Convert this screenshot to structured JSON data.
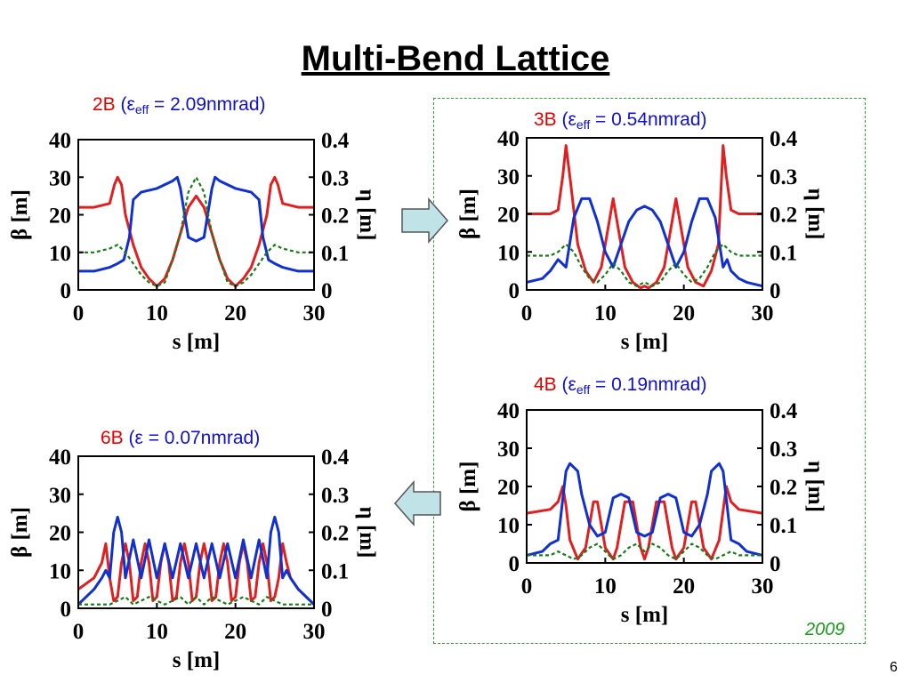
{
  "title": "Multi-Bend Lattice",
  "year": "2009",
  "page_number": "6",
  "colors": {
    "beta_x": "#e02020",
    "beta_y": "#1030d0",
    "eta": "#1a7a1a",
    "arrow_fill": "#bfe3e6",
    "box": "#3a9a3a"
  },
  "captions": {
    "c2b": {
      "label": "2B",
      "paren_open": " (",
      "eps": "ε",
      "sub": "eff",
      "rest": " = 2.09nmrad)"
    },
    "c3b": {
      "label": "3B",
      "paren_open": " (",
      "eps": "ε",
      "sub": "eff",
      "rest": " = 0.54nmrad)"
    },
    "c4b": {
      "label": "4B",
      "paren_open": " (",
      "eps": "ε",
      "sub": "eff",
      "rest": " = 0.19nmrad)"
    },
    "c6b": {
      "label": "6B",
      "rest": " (ε = 0.07nmrad)"
    }
  },
  "chart_data": [
    {
      "id": "2B",
      "type": "line",
      "xlabel": "s [m]",
      "ylabel": "β [m]",
      "y2label": "η [m]",
      "xlim": [
        0,
        30
      ],
      "ylim": [
        0,
        40
      ],
      "y2lim": [
        0,
        0.4
      ],
      "xticks": [
        "0",
        "10",
        "20",
        "30"
      ],
      "yticks": [
        "0",
        "10",
        "20",
        "30",
        "40"
      ],
      "y2ticks": [
        "0",
        "0.1",
        "0.2",
        "0.3",
        "0.4"
      ],
      "series": [
        {
          "key": "beta_x",
          "axis": "left",
          "x": [
            0,
            2,
            3,
            4,
            4.6,
            5,
            5.5,
            6,
            7,
            8,
            9,
            10,
            11,
            12,
            13,
            14,
            15,
            16,
            17,
            18,
            19,
            20,
            21,
            22,
            23,
            24,
            24.5,
            25,
            25.4,
            26,
            27,
            28,
            30
          ],
          "y": [
            22,
            22,
            22.5,
            23,
            28,
            30,
            28,
            20,
            12,
            6,
            3,
            1,
            3,
            8,
            15,
            22,
            25,
            22,
            15,
            8,
            3,
            1,
            3,
            6,
            12,
            20,
            28,
            30,
            28,
            23,
            22.5,
            22,
            22
          ]
        },
        {
          "key": "beta_y",
          "axis": "left",
          "x": [
            0,
            2,
            3,
            4,
            5,
            5.8,
            6.5,
            7,
            8,
            10,
            12,
            12.6,
            13,
            14,
            15,
            16,
            17,
            17.4,
            18,
            20,
            22,
            23,
            23.5,
            24.2,
            25,
            26,
            27,
            28,
            30
          ],
          "y": [
            5,
            5,
            5.5,
            6,
            7,
            8,
            14,
            24,
            26,
            27,
            29,
            30,
            27,
            14,
            13,
            14,
            27,
            30,
            29,
            27,
            26,
            24,
            14,
            8,
            7,
            6,
            5.5,
            5,
            5
          ]
        },
        {
          "key": "eta",
          "axis": "right",
          "x": [
            0,
            2,
            4,
            5,
            6,
            7,
            8,
            9,
            10,
            11,
            12,
            13,
            14,
            15,
            16,
            17,
            18,
            19,
            20,
            21,
            22,
            23,
            24,
            25,
            26,
            28,
            30
          ],
          "y": [
            0.1,
            0.1,
            0.11,
            0.12,
            0.1,
            0.07,
            0.04,
            0.02,
            0.01,
            0.02,
            0.08,
            0.15,
            0.26,
            0.3,
            0.26,
            0.15,
            0.08,
            0.02,
            0.01,
            0.02,
            0.04,
            0.07,
            0.1,
            0.12,
            0.11,
            0.1,
            0.1
          ]
        }
      ]
    },
    {
      "id": "3B",
      "type": "line",
      "xlabel": "s [m]",
      "ylabel": "β [m]",
      "y2label": "η [m]",
      "xlim": [
        0,
        30
      ],
      "ylim": [
        0,
        40
      ],
      "y2lim": [
        0,
        0.4
      ],
      "xticks": [
        "0",
        "10",
        "20",
        "30"
      ],
      "yticks": [
        "0",
        "10",
        "20",
        "30",
        "40"
      ],
      "y2ticks": [
        "0",
        "0.1",
        "0.2",
        "0.3",
        "0.4"
      ],
      "series": [
        {
          "key": "beta_x",
          "axis": "left",
          "x": [
            0,
            3,
            4,
            4.6,
            5,
            5.6,
            6.5,
            7.5,
            8.5,
            9.5,
            10.5,
            11,
            11.5,
            12.5,
            13.5,
            14.5,
            15,
            15.5,
            16.5,
            17.5,
            18.5,
            19,
            19.5,
            20.5,
            21.5,
            22.5,
            23.5,
            24.4,
            25,
            25.4,
            26,
            27,
            30
          ],
          "y": [
            20,
            20,
            21,
            30,
            38,
            28,
            12,
            5,
            2,
            6,
            18,
            24,
            18,
            6,
            2,
            0.5,
            1,
            0.5,
            2,
            6,
            18,
            24,
            18,
            6,
            2,
            1,
            5,
            12,
            38,
            30,
            21,
            20,
            20
          ]
        },
        {
          "key": "beta_y",
          "axis": "left",
          "x": [
            0,
            2,
            3,
            4,
            5,
            6,
            7,
            8,
            9,
            10,
            11,
            12,
            13,
            14,
            15,
            16,
            17,
            18,
            19,
            20,
            21,
            22,
            23,
            24,
            25,
            25.5,
            26,
            27,
            28,
            30
          ],
          "y": [
            2,
            3,
            5,
            8,
            6,
            19,
            24,
            24,
            18,
            10,
            6,
            12,
            18,
            21,
            22,
            21,
            18,
            12,
            6,
            10,
            18,
            24,
            24,
            19,
            6,
            8,
            5,
            3,
            2,
            1
          ]
        },
        {
          "key": "eta",
          "axis": "right",
          "x": [
            0,
            3,
            4,
            5,
            6,
            7,
            8,
            9,
            10,
            11,
            12,
            13,
            14,
            15,
            16,
            17,
            18,
            19,
            20,
            21,
            22,
            23,
            24,
            25,
            26,
            27,
            30
          ],
          "y": [
            0.09,
            0.09,
            0.1,
            0.12,
            0.1,
            0.06,
            0.03,
            0.02,
            0.04,
            0.07,
            0.05,
            0.02,
            0.01,
            0.02,
            0.01,
            0.02,
            0.05,
            0.07,
            0.04,
            0.02,
            0.03,
            0.06,
            0.1,
            0.12,
            0.1,
            0.09,
            0.09
          ]
        }
      ]
    },
    {
      "id": "4B",
      "type": "line",
      "xlabel": "s [m]",
      "ylabel": "β [m]",
      "y2label": "η [m]",
      "xlim": [
        0,
        30
      ],
      "ylim": [
        0,
        40
      ],
      "y2lim": [
        0,
        0.4
      ],
      "xticks": [
        "0",
        "10",
        "20",
        "30"
      ],
      "yticks": [
        "0",
        "10",
        "20",
        "30",
        "40"
      ],
      "y2ticks": [
        "0",
        "0.1",
        "0.2",
        "0.3",
        "0.4"
      ],
      "series": [
        {
          "key": "beta_x",
          "axis": "left",
          "x": [
            0,
            3,
            4,
            4.6,
            5,
            5.5,
            6.5,
            7.5,
            8.5,
            9,
            10,
            11,
            11.5,
            12.5,
            13.5,
            14.5,
            15,
            15.5,
            16.5,
            17.5,
            18.5,
            19,
            20,
            21,
            21.5,
            22.5,
            23.5,
            24.5,
            25.4,
            26,
            27,
            30
          ],
          "y": [
            13,
            14,
            16,
            20,
            15,
            6,
            1,
            4,
            16,
            16,
            4,
            1,
            4,
            16,
            16,
            4,
            1,
            4,
            16,
            16,
            4,
            1,
            4,
            16,
            16,
            4,
            1,
            6,
            20,
            16,
            14,
            13
          ]
        },
        {
          "key": "beta_y",
          "axis": "left",
          "x": [
            0,
            2,
            3,
            4,
            5,
            5.5,
            6.5,
            7,
            8,
            9,
            10,
            11,
            12,
            13,
            14,
            15,
            16,
            17,
            18,
            19,
            20,
            21,
            22,
            23,
            23.5,
            24.5,
            25,
            26,
            27,
            28,
            30
          ],
          "y": [
            2,
            3,
            5,
            6,
            24,
            26,
            24,
            18,
            10,
            7,
            8,
            17,
            18,
            17,
            8,
            7,
            8,
            17,
            18,
            17,
            8,
            7,
            10,
            18,
            24,
            26,
            24,
            6,
            5,
            3,
            2
          ]
        },
        {
          "key": "eta",
          "axis": "right",
          "x": [
            0,
            3,
            4,
            5,
            6,
            7,
            8,
            9,
            10,
            11,
            12,
            13,
            14,
            15,
            16,
            17,
            18,
            19,
            20,
            21,
            22,
            23,
            24,
            25,
            26,
            27,
            30
          ],
          "y": [
            0.02,
            0.02,
            0.03,
            0.02,
            0.01,
            0.02,
            0.04,
            0.05,
            0.03,
            0.01,
            0.02,
            0.04,
            0.05,
            0.03,
            0.05,
            0.04,
            0.02,
            0.01,
            0.03,
            0.05,
            0.04,
            0.02,
            0.01,
            0.02,
            0.03,
            0.02,
            0.02
          ]
        }
      ]
    },
    {
      "id": "6B",
      "type": "line",
      "xlabel": "s [m]",
      "ylabel": "β [m]",
      "y2label": "η [m]",
      "xlim": [
        0,
        30
      ],
      "ylim": [
        0,
        40
      ],
      "y2lim": [
        0,
        0.4
      ],
      "xticks": [
        "0",
        "10",
        "20",
        "30"
      ],
      "yticks": [
        "0",
        "10",
        "20",
        "30",
        "40"
      ],
      "y2ticks": [
        "0",
        "0.1",
        "0.2",
        "0.3",
        "0.4"
      ],
      "series": [
        {
          "key": "beta_x",
          "axis": "left",
          "x": [
            0,
            2,
            3,
            3.5,
            4,
            4.5,
            5,
            5.5,
            6,
            6.5,
            7,
            7.5,
            8,
            8.5,
            9,
            9.5,
            10,
            10.5,
            11,
            11.5,
            12,
            12.5,
            13,
            13.5,
            14,
            14.5,
            15,
            15.5,
            16,
            16.5,
            17,
            17.5,
            18,
            18.5,
            19,
            19.5,
            20,
            20.5,
            21,
            21.5,
            22,
            22.5,
            23,
            23.5,
            24,
            24.5,
            25,
            25.5,
            26,
            26.5,
            27,
            28,
            30
          ],
          "y": [
            5,
            8,
            12,
            17,
            8,
            2,
            3,
            12,
            17,
            12,
            2,
            3,
            12,
            17,
            12,
            2,
            3,
            12,
            17,
            12,
            2,
            3,
            12,
            17,
            12,
            2,
            3,
            12,
            17,
            12,
            2,
            3,
            12,
            17,
            12,
            2,
            3,
            12,
            17,
            12,
            2,
            3,
            12,
            17,
            12,
            2,
            3,
            8,
            17,
            12,
            8,
            5,
            1
          ]
        },
        {
          "key": "beta_y",
          "axis": "left",
          "x": [
            0,
            2,
            3,
            3.5,
            4,
            4.5,
            5,
            5.5,
            6,
            7,
            8,
            9,
            10,
            11,
            12,
            13,
            14,
            15,
            16,
            17,
            18,
            19,
            20,
            21,
            22,
            23,
            24,
            24.5,
            25,
            25.5,
            26,
            26.5,
            27,
            28,
            30
          ],
          "y": [
            1,
            5,
            8,
            10,
            8,
            20,
            24,
            20,
            8,
            18,
            8,
            18,
            8,
            17,
            8,
            17,
            8,
            17,
            8,
            17,
            8,
            17,
            8,
            18,
            8,
            18,
            8,
            20,
            24,
            20,
            8,
            10,
            8,
            5,
            1
          ]
        },
        {
          "key": "eta",
          "axis": "right",
          "x": [
            0,
            2,
            4,
            5,
            6,
            7,
            8,
            9,
            10,
            11,
            12,
            13,
            14,
            15,
            16,
            17,
            18,
            19,
            20,
            21,
            22,
            23,
            24,
            25,
            26,
            28,
            30
          ],
          "y": [
            0.01,
            0.01,
            0.01,
            0.02,
            0.03,
            0.01,
            0.02,
            0.03,
            0.02,
            0.01,
            0.02,
            0.03,
            0.01,
            0.03,
            0.01,
            0.03,
            0.02,
            0.01,
            0.02,
            0.03,
            0.02,
            0.01,
            0.03,
            0.02,
            0.01,
            0.01,
            0.01
          ]
        }
      ]
    }
  ]
}
